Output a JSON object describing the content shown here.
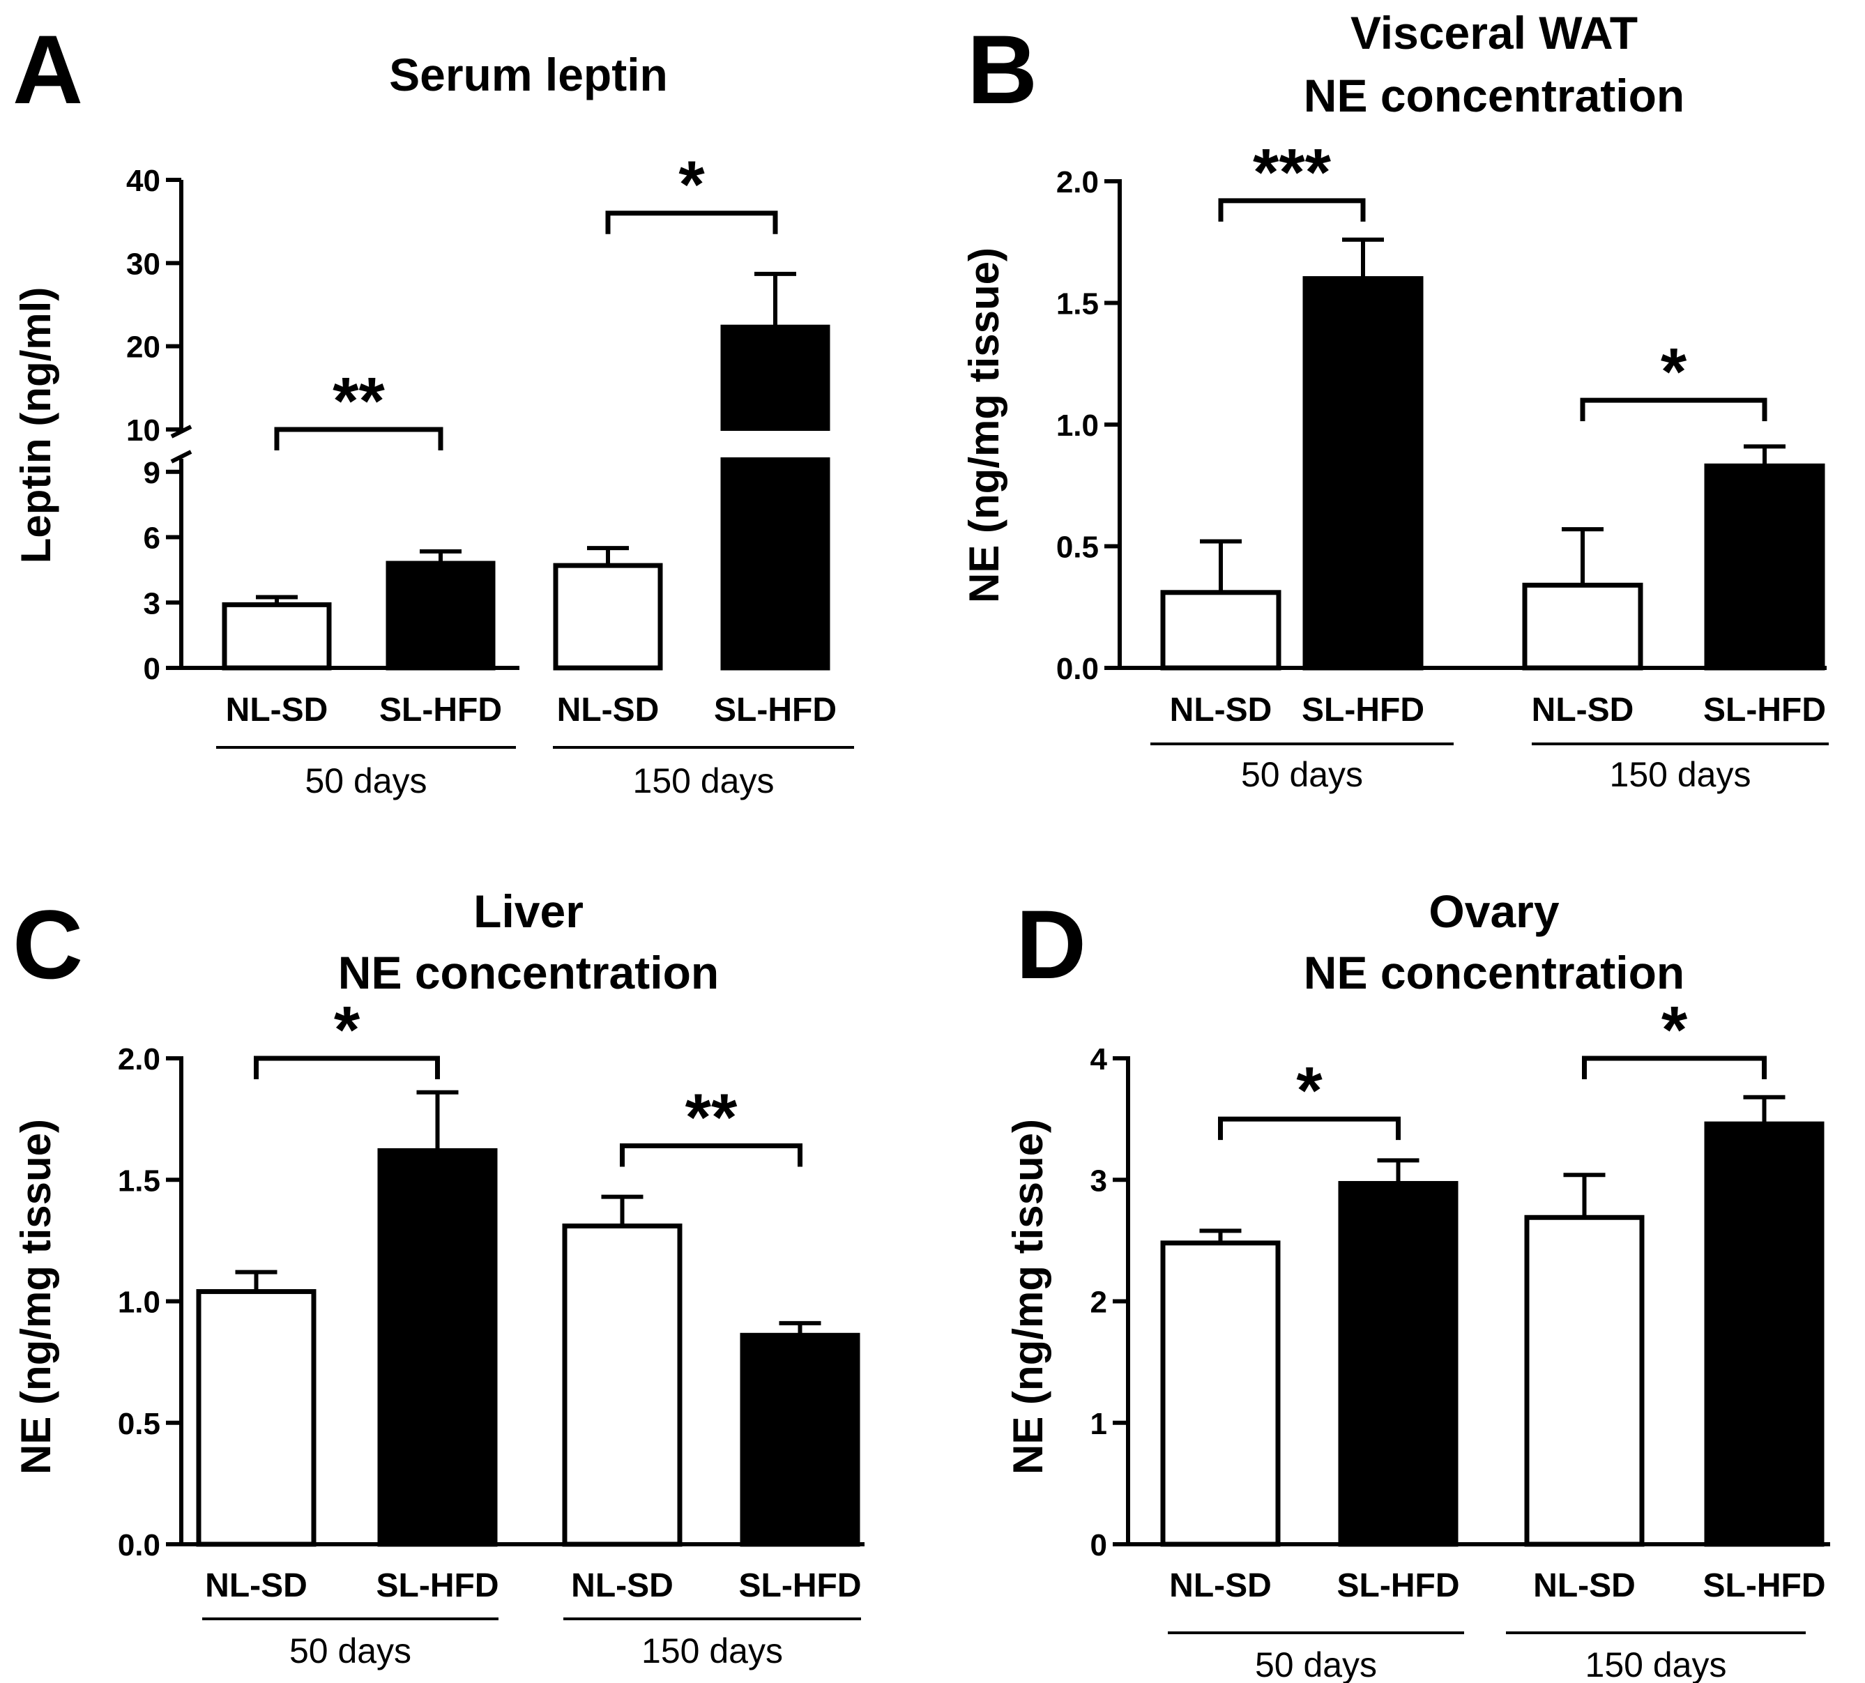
{
  "figure": {
    "groups": [
      "50 days",
      "150 days"
    ],
    "categories": [
      "NL-SD",
      "SL-HFD",
      "NL-SD",
      "SL-HFD"
    ]
  },
  "chart_data": [
    {
      "panel": "A",
      "type": "bar",
      "title": [
        "Serum leptin"
      ],
      "ylabel": "Leptin (ng/ml)",
      "categories": [
        "NL-SD",
        "SL-HFD",
        "NL-SD",
        "SL-HFD"
      ],
      "groups": [
        "50 days",
        "150 days"
      ],
      "fill": [
        "#ffffff",
        "#000000",
        "#ffffff",
        "#000000"
      ],
      "values": [
        2.9,
        4.8,
        4.7,
        22.3
      ],
      "errors": [
        0.35,
        0.55,
        0.8,
        6.4
      ],
      "ylim": [
        0,
        40
      ],
      "axis_break": {
        "lower": [
          0,
          9.6
        ],
        "upper": [
          10,
          40
        ]
      },
      "ticks": [
        0,
        3,
        6,
        9,
        10,
        20,
        30,
        40
      ],
      "significance": [
        {
          "from": 0,
          "to": 1,
          "label": "**",
          "y": 10
        },
        {
          "from": 2,
          "to": 3,
          "label": "*",
          "y": 36
        }
      ]
    },
    {
      "panel": "B",
      "type": "bar",
      "title": [
        "Visceral WAT",
        "NE concentration"
      ],
      "ylabel": "NE (ng/mg tissue)",
      "categories": [
        "NL-SD",
        "SL-HFD",
        "NL-SD",
        "SL-HFD"
      ],
      "groups": [
        "50 days",
        "150 days"
      ],
      "fill": [
        "#ffffff",
        "#000000",
        "#ffffff",
        "#000000"
      ],
      "values": [
        0.31,
        1.6,
        0.34,
        0.83
      ],
      "errors": [
        0.21,
        0.16,
        0.23,
        0.08
      ],
      "ylim": [
        0,
        2.0
      ],
      "ticks": [
        "0.0",
        "0.5",
        "1.0",
        "1.5",
        "2.0"
      ],
      "significance": [
        {
          "from": 0,
          "to": 1,
          "label": "***",
          "y": 1.92
        },
        {
          "from": 2,
          "to": 3,
          "label": "*",
          "y": 1.1
        }
      ]
    },
    {
      "panel": "C",
      "type": "bar",
      "title": [
        "Liver",
        "NE concentration"
      ],
      "ylabel": "NE (ng/mg tissue)",
      "categories": [
        "NL-SD",
        "SL-HFD",
        "NL-SD",
        "SL-HFD"
      ],
      "groups": [
        "50 days",
        "150 days"
      ],
      "fill": [
        "#ffffff",
        "#000000",
        "#ffffff",
        "#000000"
      ],
      "values": [
        1.04,
        1.62,
        1.31,
        0.86
      ],
      "errors": [
        0.08,
        0.24,
        0.12,
        0.05
      ],
      "ylim": [
        0,
        2.0
      ],
      "ticks": [
        "0.0",
        "0.5",
        "1.0",
        "1.5",
        "2.0"
      ],
      "significance": [
        {
          "from": 0,
          "to": 1,
          "label": "*",
          "y": 2.0
        },
        {
          "from": 2,
          "to": 3,
          "label": "**",
          "y": 1.64
        }
      ]
    },
    {
      "panel": "D",
      "type": "bar",
      "title": [
        "Ovary",
        "NE concentration"
      ],
      "ylabel": "NE (ng/mg tissue)",
      "categories": [
        "NL-SD",
        "SL-HFD",
        "NL-SD",
        "SL-HFD"
      ],
      "groups": [
        "50 days",
        "150 days"
      ],
      "fill": [
        "#ffffff",
        "#000000",
        "#ffffff",
        "#000000"
      ],
      "values": [
        2.48,
        2.97,
        2.69,
        3.46
      ],
      "errors": [
        0.1,
        0.19,
        0.35,
        0.22
      ],
      "ylim": [
        0,
        4
      ],
      "ticks": [
        "0",
        "1",
        "2",
        "3",
        "4"
      ],
      "significance": [
        {
          "from": 0,
          "to": 1,
          "label": "*",
          "y": 3.5
        },
        {
          "from": 2,
          "to": 3,
          "label": "*",
          "y": 4.0
        }
      ]
    }
  ]
}
